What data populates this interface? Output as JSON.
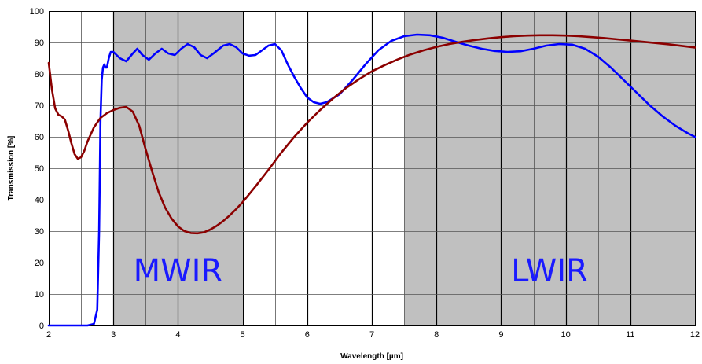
{
  "chart_data": {
    "type": "line",
    "title": "",
    "xlabel": "Wavelength [µm]",
    "ylabel": "Transmission [%]",
    "xlim": [
      2,
      12
    ],
    "ylim": [
      0,
      100
    ],
    "x_ticks": [
      2,
      3,
      4,
      5,
      6,
      7,
      8,
      9,
      10,
      11,
      12
    ],
    "y_ticks": [
      0,
      10,
      20,
      30,
      40,
      50,
      60,
      70,
      80,
      90,
      100
    ],
    "x_minor_step": 0.5,
    "grid": true,
    "legend": "none",
    "shaded_bands": [
      {
        "label": "MWIR",
        "x_start": 3,
        "x_end": 5,
        "label_x": 4,
        "label_y": 14
      },
      {
        "label": "LWIR",
        "x_start": 7.5,
        "x_end": 12,
        "label_x": 9.75,
        "label_y": 14
      }
    ],
    "band_color": "#c0c0c0",
    "band_label_color": "#1a1aff",
    "series": [
      {
        "color": "#0000ff",
        "points": [
          [
            2.0,
            0
          ],
          [
            2.6,
            0
          ],
          [
            2.7,
            0.5
          ],
          [
            2.75,
            5
          ],
          [
            2.78,
            30
          ],
          [
            2.8,
            65
          ],
          [
            2.82,
            78
          ],
          [
            2.84,
            82
          ],
          [
            2.86,
            83
          ],
          [
            2.88,
            82
          ],
          [
            2.9,
            82
          ],
          [
            2.93,
            85
          ],
          [
            2.96,
            87
          ],
          [
            3.0,
            87
          ],
          [
            3.05,
            86
          ],
          [
            3.1,
            85
          ],
          [
            3.2,
            84
          ],
          [
            3.3,
            86.5
          ],
          [
            3.37,
            88
          ],
          [
            3.45,
            86
          ],
          [
            3.55,
            84.5
          ],
          [
            3.65,
            86.5
          ],
          [
            3.75,
            88
          ],
          [
            3.85,
            86.5
          ],
          [
            3.95,
            86
          ],
          [
            4.05,
            88
          ],
          [
            4.15,
            89.5
          ],
          [
            4.25,
            88.5
          ],
          [
            4.35,
            86
          ],
          [
            4.45,
            85
          ],
          [
            4.55,
            86.5
          ],
          [
            4.7,
            89
          ],
          [
            4.8,
            89.5
          ],
          [
            4.9,
            88.5
          ],
          [
            5.0,
            86.5
          ],
          [
            5.1,
            85.8
          ],
          [
            5.2,
            86
          ],
          [
            5.3,
            87.5
          ],
          [
            5.4,
            89
          ],
          [
            5.5,
            89.5
          ],
          [
            5.6,
            87.5
          ],
          [
            5.7,
            83
          ],
          [
            5.8,
            79
          ],
          [
            5.9,
            75.5
          ],
          [
            6.0,
            72.5
          ],
          [
            6.1,
            71
          ],
          [
            6.2,
            70.5
          ],
          [
            6.3,
            71
          ],
          [
            6.5,
            73.5
          ],
          [
            6.7,
            78
          ],
          [
            6.9,
            83
          ],
          [
            7.1,
            87.5
          ],
          [
            7.3,
            90.5
          ],
          [
            7.5,
            92
          ],
          [
            7.7,
            92.5
          ],
          [
            7.9,
            92.3
          ],
          [
            8.1,
            91.5
          ],
          [
            8.3,
            90.2
          ],
          [
            8.5,
            89
          ],
          [
            8.7,
            88
          ],
          [
            8.9,
            87.3
          ],
          [
            9.1,
            87
          ],
          [
            9.3,
            87.2
          ],
          [
            9.5,
            88
          ],
          [
            9.7,
            89
          ],
          [
            9.9,
            89.5
          ],
          [
            10.1,
            89.3
          ],
          [
            10.3,
            88
          ],
          [
            10.5,
            85.5
          ],
          [
            10.7,
            82
          ],
          [
            10.9,
            78
          ],
          [
            11.1,
            74
          ],
          [
            11.3,
            70
          ],
          [
            11.5,
            66.5
          ],
          [
            11.7,
            63.5
          ],
          [
            11.9,
            61
          ],
          [
            12.0,
            60
          ]
        ]
      },
      {
        "color": "#8b0000",
        "points": [
          [
            2.0,
            83.5
          ],
          [
            2.05,
            75
          ],
          [
            2.1,
            69
          ],
          [
            2.15,
            67
          ],
          [
            2.2,
            66.5
          ],
          [
            2.25,
            65.5
          ],
          [
            2.3,
            62
          ],
          [
            2.35,
            58
          ],
          [
            2.4,
            54.5
          ],
          [
            2.45,
            53
          ],
          [
            2.5,
            53.5
          ],
          [
            2.55,
            55.5
          ],
          [
            2.6,
            58.5
          ],
          [
            2.7,
            63
          ],
          [
            2.8,
            66
          ],
          [
            2.9,
            67.5
          ],
          [
            3.0,
            68.5
          ],
          [
            3.1,
            69.2
          ],
          [
            3.2,
            69.5
          ],
          [
            3.3,
            68
          ],
          [
            3.4,
            63.5
          ],
          [
            3.5,
            56
          ],
          [
            3.6,
            49
          ],
          [
            3.7,
            42.5
          ],
          [
            3.8,
            37.5
          ],
          [
            3.9,
            34
          ],
          [
            4.0,
            31.5
          ],
          [
            4.1,
            30
          ],
          [
            4.2,
            29.4
          ],
          [
            4.3,
            29.3
          ],
          [
            4.4,
            29.6
          ],
          [
            4.5,
            30.5
          ],
          [
            4.6,
            31.7
          ],
          [
            4.7,
            33.2
          ],
          [
            4.8,
            35
          ],
          [
            4.9,
            37
          ],
          [
            5.0,
            39.2
          ],
          [
            5.2,
            44.2
          ],
          [
            5.4,
            49.5
          ],
          [
            5.6,
            55
          ],
          [
            5.8,
            60
          ],
          [
            6.0,
            64.5
          ],
          [
            6.2,
            68.5
          ],
          [
            6.4,
            72.2
          ],
          [
            6.6,
            75.5
          ],
          [
            6.8,
            78.3
          ],
          [
            7.0,
            80.8
          ],
          [
            7.2,
            82.8
          ],
          [
            7.4,
            84.6
          ],
          [
            7.6,
            86.2
          ],
          [
            7.8,
            87.5
          ],
          [
            8.0,
            88.6
          ],
          [
            8.2,
            89.5
          ],
          [
            8.4,
            90.2
          ],
          [
            8.6,
            90.8
          ],
          [
            8.8,
            91.3
          ],
          [
            9.0,
            91.7
          ],
          [
            9.2,
            92
          ],
          [
            9.4,
            92.2
          ],
          [
            9.6,
            92.3
          ],
          [
            9.8,
            92.3
          ],
          [
            10.0,
            92.2
          ],
          [
            10.2,
            92
          ],
          [
            10.4,
            91.7
          ],
          [
            10.6,
            91.4
          ],
          [
            10.8,
            91
          ],
          [
            11.0,
            90.6
          ],
          [
            11.2,
            90.2
          ],
          [
            11.4,
            89.8
          ],
          [
            11.6,
            89.4
          ],
          [
            11.8,
            88.9
          ],
          [
            12.0,
            88.4
          ]
        ]
      }
    ]
  }
}
